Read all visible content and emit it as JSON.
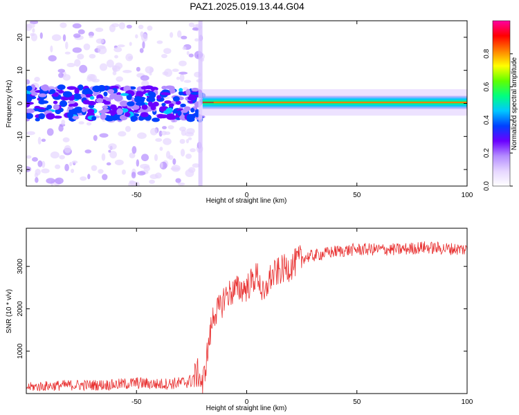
{
  "title": "PAZ1.2025.019.13.44.G04",
  "chart_data": [
    {
      "type": "heatmap",
      "xlabel": "Height of straight line (km)",
      "ylabel": "Frequency (Hz)",
      "xlim": [
        -100,
        100
      ],
      "ylim": [
        -25,
        25
      ],
      "x_ticks": [
        -50,
        0,
        50,
        100
      ],
      "y_ticks": [
        -20,
        -10,
        0,
        10,
        20
      ],
      "colorbar": {
        "label": "Normalized spectral amplitude",
        "range": [
          0,
          1
        ],
        "ticks": [
          0.0,
          0.2,
          0.4,
          0.6,
          0.8
        ],
        "colors": [
          "#ffffff",
          "#e6d6ff",
          "#b48cff",
          "#6a00ff",
          "#0040ff",
          "#00c8ff",
          "#00ff80",
          "#60ff00",
          "#ffff00",
          "#ff8000",
          "#ff0000",
          "#ff00a0"
        ]
      },
      "signal_band": {
        "x_range": [
          -20,
          100
        ],
        "center_frequency": 0.3,
        "peak_amplitude": 0.8
      },
      "noise_region": {
        "x_range": [
          -100,
          -20
        ],
        "frequency_range": [
          -25,
          25
        ],
        "typical_amplitude": 0.3
      },
      "vertical_stripe_x": -21
    },
    {
      "type": "line",
      "xlabel": "Height of straight line (km)",
      "ylabel": "SNR (10 * v/v)",
      "xlim": [
        -100,
        100
      ],
      "ylim": [
        0,
        3900
      ],
      "x_ticks": [
        -50,
        0,
        50,
        100
      ],
      "y_ticks": [
        1000,
        2000,
        3000
      ],
      "line_color": "#e83030",
      "x": [
        -100,
        -90,
        -80,
        -70,
        -60,
        -50,
        -40,
        -30,
        -25,
        -22,
        -20,
        -18,
        -15,
        -12,
        -10,
        -5,
        0,
        5,
        8,
        10,
        15,
        20,
        25,
        30,
        40,
        50,
        60,
        70,
        80,
        90,
        100
      ],
      "values": [
        150,
        180,
        200,
        200,
        210,
        250,
        220,
        250,
        300,
        500,
        180,
        900,
        1900,
        2000,
        2300,
        2450,
        2500,
        2800,
        2200,
        2700,
        2900,
        3000,
        3200,
        3250,
        3350,
        3400,
        3400,
        3400,
        3450,
        3420,
        3400
      ]
    }
  ]
}
